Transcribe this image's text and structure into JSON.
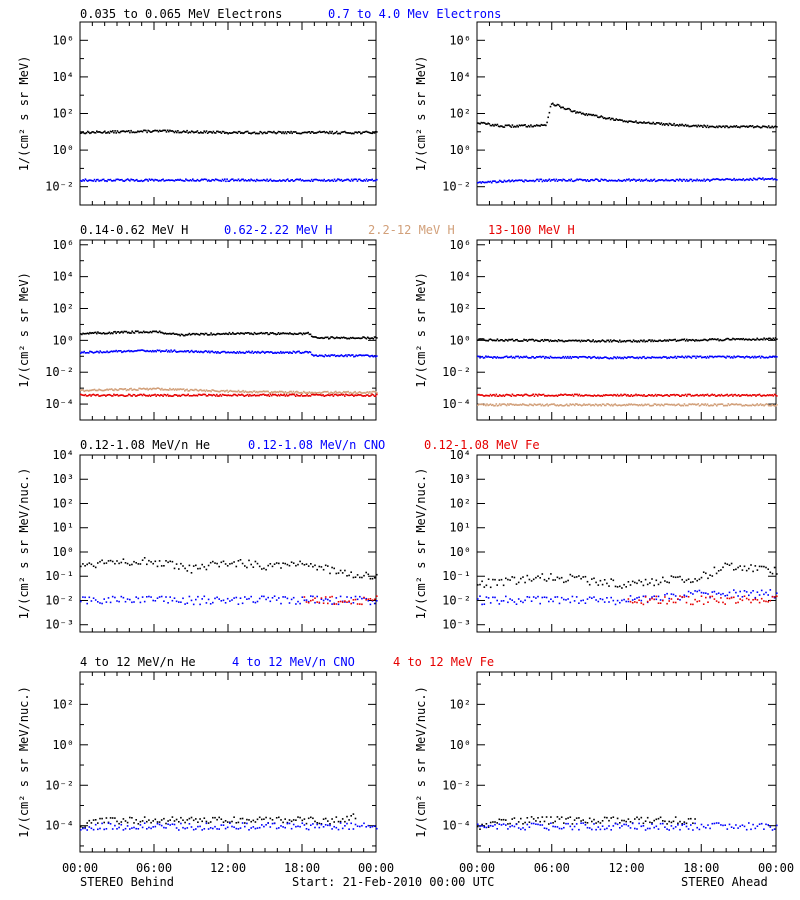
{
  "figure": {
    "start_label": "Start: 21-Feb-2010 00:00 UTC",
    "left_label": "STEREO Behind",
    "right_label": "STEREO Ahead",
    "time_ticks": [
      "00:00",
      "06:00",
      "12:00",
      "18:00",
      "00:00"
    ]
  },
  "colors": {
    "black": "#000000",
    "blue": "#0000ff",
    "tan": "#d2a07a",
    "red": "#e60000"
  },
  "rows": [
    {
      "ylabel": "1/(cm² s sr MeV)",
      "legend": [
        {
          "text": "0.035 to 0.065 MeV Electrons",
          "color": "#000000"
        },
        {
          "text": "0.7 to 4.0 Mev Electrons",
          "color": "#0000ff"
        }
      ],
      "yticks": [
        "10⁻²",
        "10⁰",
        "10²",
        "10⁴",
        "10⁶"
      ]
    },
    {
      "ylabel": "1/(cm² s sr MeV)",
      "legend": [
        {
          "text": "0.14-0.62 MeV H",
          "color": "#000000"
        },
        {
          "text": "0.62-2.22 MeV H",
          "color": "#0000ff"
        },
        {
          "text": "2.2-12 MeV H",
          "color": "#d2a07a"
        },
        {
          "text": "13-100 MeV H",
          "color": "#e60000"
        }
      ],
      "yticks": [
        "10⁻⁴",
        "10⁻²",
        "10⁰",
        "10²",
        "10⁴",
        "10⁶"
      ]
    },
    {
      "ylabel": "1/(cm² s sr MeV/nuc.)",
      "legend": [
        {
          "text": "0.12-1.08 MeV/n He",
          "color": "#000000"
        },
        {
          "text": "0.12-1.08 MeV/n CNO",
          "color": "#0000ff"
        },
        {
          "text": "0.12-1.08 MeV Fe",
          "color": "#e60000"
        }
      ],
      "yticks": [
        "10⁻³",
        "10⁻²",
        "10⁻¹",
        "10⁰",
        "10¹",
        "10²",
        "10³",
        "10⁴"
      ]
    },
    {
      "ylabel": "1/(cm² s sr MeV/nuc.)",
      "legend": [
        {
          "text": "4 to 12 MeV/n He",
          "color": "#000000"
        },
        {
          "text": "4 to 12 MeV/n CNO",
          "color": "#0000ff"
        },
        {
          "text": "4 to 12 MeV Fe",
          "color": "#e60000"
        }
      ],
      "yticks": [
        "10⁻⁴",
        "10⁰",
        "10²",
        "10⁻²"
      ]
    }
  ],
  "chart_data": [
    {
      "type": "scatter",
      "panel": "electrons-behind",
      "x_unit": "hours",
      "xlim": [
        0,
        24
      ],
      "ylim_log10": [
        -3,
        7
      ],
      "y_scale": "log",
      "series": [
        {
          "name": "0.035 to 0.065 MeV Electrons",
          "color": "#000000",
          "x": [
            0,
            6,
            12,
            18,
            24
          ],
          "y": [
            10,
            12,
            10,
            10,
            10
          ]
        },
        {
          "name": "0.7 to 4.0 Mev Electrons",
          "color": "#0000ff",
          "x": [
            0,
            6,
            12,
            18,
            24
          ],
          "y": [
            0.025,
            0.025,
            0.025,
            0.025,
            0.025
          ]
        }
      ]
    },
    {
      "type": "scatter",
      "panel": "electrons-ahead",
      "x_unit": "hours",
      "xlim": [
        0,
        24
      ],
      "ylim_log10": [
        -3,
        7
      ],
      "y_scale": "log",
      "series": [
        {
          "name": "0.035 to 0.065 MeV Electrons",
          "color": "#000000",
          "x": [
            0,
            2,
            5.5,
            5.9,
            8,
            12,
            18,
            24
          ],
          "y": [
            35,
            22,
            25,
            400,
            120,
            40,
            22,
            20
          ]
        },
        {
          "name": "0.7 to 4.0 Mev Electrons",
          "color": "#0000ff",
          "x": [
            0,
            6,
            12,
            18,
            24
          ],
          "y": [
            0.02,
            0.025,
            0.025,
            0.025,
            0.03
          ]
        }
      ]
    },
    {
      "type": "scatter",
      "panel": "protons-behind",
      "x_unit": "hours",
      "xlim": [
        0,
        24
      ],
      "ylim_log10": [
        -5,
        6
      ],
      "y_scale": "log",
      "series": [
        {
          "name": "0.14-0.62 MeV H",
          "color": "#000000",
          "x": [
            0,
            6,
            8,
            12,
            18.5,
            19,
            24
          ],
          "y": [
            3,
            4,
            2.5,
            3,
            3,
            1.6,
            1.6
          ]
        },
        {
          "name": "0.62-2.22 MeV H",
          "color": "#0000ff",
          "x": [
            0,
            6,
            12,
            18.5,
            19,
            24
          ],
          "y": [
            0.2,
            0.25,
            0.2,
            0.2,
            0.12,
            0.12
          ]
        },
        {
          "name": "2.2-12 MeV H",
          "color": "#d2a07a",
          "x": [
            0,
            6,
            12,
            18,
            24
          ],
          "y": [
            0.0008,
            0.001,
            0.0007,
            0.0006,
            0.0006
          ]
        },
        {
          "name": "13-100 MeV H",
          "color": "#e60000",
          "x": [
            0,
            6,
            12,
            18,
            24
          ],
          "y": [
            0.0004,
            0.0004,
            0.0004,
            0.0004,
            0.0004
          ]
        }
      ]
    },
    {
      "type": "scatter",
      "panel": "protons-ahead",
      "x_unit": "hours",
      "xlim": [
        0,
        24
      ],
      "ylim_log10": [
        -5,
        6
      ],
      "y_scale": "log",
      "series": [
        {
          "name": "0.14-0.62 MeV H",
          "color": "#000000",
          "x": [
            0,
            12,
            18,
            24
          ],
          "y": [
            1.2,
            1,
            1.2,
            1.4
          ]
        },
        {
          "name": "0.62-2.22 MeV H",
          "color": "#0000ff",
          "x": [
            0,
            12,
            18,
            24
          ],
          "y": [
            0.1,
            0.09,
            0.1,
            0.1
          ]
        },
        {
          "name": "2.2-12 MeV H",
          "color": "#d2a07a",
          "x": [
            0,
            12,
            24
          ],
          "y": [
            0.0001,
            0.0001,
            0.0001
          ]
        },
        {
          "name": "13-100 MeV H",
          "color": "#e60000",
          "x": [
            0,
            12,
            24
          ],
          "y": [
            0.0004,
            0.0004,
            0.0004
          ]
        }
      ]
    },
    {
      "type": "scatter",
      "panel": "heavy-low-behind",
      "x_unit": "hours",
      "xlim": [
        0,
        24
      ],
      "ylim_log10": [
        -3,
        4
      ],
      "y_scale": "log",
      "series": [
        {
          "name": "0.12-1.08 MeV/n He",
          "color": "#000000",
          "x": [
            0,
            3,
            6,
            9,
            12,
            15,
            18,
            21,
            24
          ],
          "y": [
            0.3,
            0.5,
            0.4,
            0.2,
            0.4,
            0.3,
            0.4,
            0.15,
            0.1
          ]
        },
        {
          "name": "0.12-1.08 MeV/n CNO",
          "color": "#0000ff",
          "x": [
            0,
            6,
            12,
            18,
            24
          ],
          "y": [
            0.011,
            0.011,
            0.011,
            0.011,
            0.011
          ]
        },
        {
          "name": "0.12-1.08 MeV Fe",
          "color": "#e60000",
          "x": [
            18,
            20,
            24
          ],
          "y": [
            0.011,
            0.011,
            0.011
          ]
        }
      ]
    },
    {
      "type": "scatter",
      "panel": "heavy-low-ahead",
      "x_unit": "hours",
      "xlim": [
        0,
        24
      ],
      "ylim_log10": [
        -3,
        4
      ],
      "y_scale": "log",
      "series": [
        {
          "name": "0.12-1.08 MeV/n He",
          "color": "#000000",
          "x": [
            0,
            6,
            12,
            18,
            20,
            24
          ],
          "y": [
            0.05,
            0.1,
            0.05,
            0.1,
            0.3,
            0.2
          ]
        },
        {
          "name": "0.12-1.08 MeV/n CNO",
          "color": "#0000ff",
          "x": [
            0,
            6,
            12,
            18,
            24
          ],
          "y": [
            0.011,
            0.011,
            0.011,
            0.02,
            0.02
          ]
        },
        {
          "name": "0.12-1.08 MeV Fe",
          "color": "#e60000",
          "x": [
            12,
            18,
            24
          ],
          "y": [
            0.011,
            0.011,
            0.011
          ]
        }
      ]
    },
    {
      "type": "scatter",
      "panel": "heavy-high-behind",
      "x_unit": "hours",
      "xlim": [
        0,
        24
      ],
      "ylim_log10": [
        -5,
        4
      ],
      "y_scale": "log",
      "series": [
        {
          "name": "4 to 12 MeV/n He",
          "color": "#000000",
          "x": [
            0,
            1.5,
            8.5,
            10.5,
            17.2,
            21.4,
            22.3
          ],
          "y": [
            0.0001,
            0.0002,
            0.0002,
            0.0002,
            0.0002,
            0.0002,
            0.0003
          ]
        },
        {
          "name": "4 to 12 MeV/n CNO",
          "color": "#0000ff",
          "x": [
            0,
            6,
            12,
            18,
            24
          ],
          "y": [
            0.0001,
            0.0001,
            0.0001,
            0.0001,
            0.0001
          ]
        }
      ]
    },
    {
      "type": "scatter",
      "panel": "heavy-high-ahead",
      "x_unit": "hours",
      "xlim": [
        0,
        24
      ],
      "ylim_log10": [
        -5,
        4
      ],
      "y_scale": "log",
      "series": [
        {
          "name": "4 to 12 MeV/n He",
          "color": "#000000",
          "x": [
            0,
            2,
            14.2,
            17.5
          ],
          "y": [
            0.0001,
            0.0002,
            0.0002,
            0.0002
          ]
        },
        {
          "name": "4 to 12 MeV/n CNO",
          "color": "#0000ff",
          "x": [
            0,
            6,
            12,
            18,
            24
          ],
          "y": [
            0.0001,
            0.0001,
            0.0001,
            0.0001,
            0.0001
          ]
        }
      ]
    }
  ]
}
